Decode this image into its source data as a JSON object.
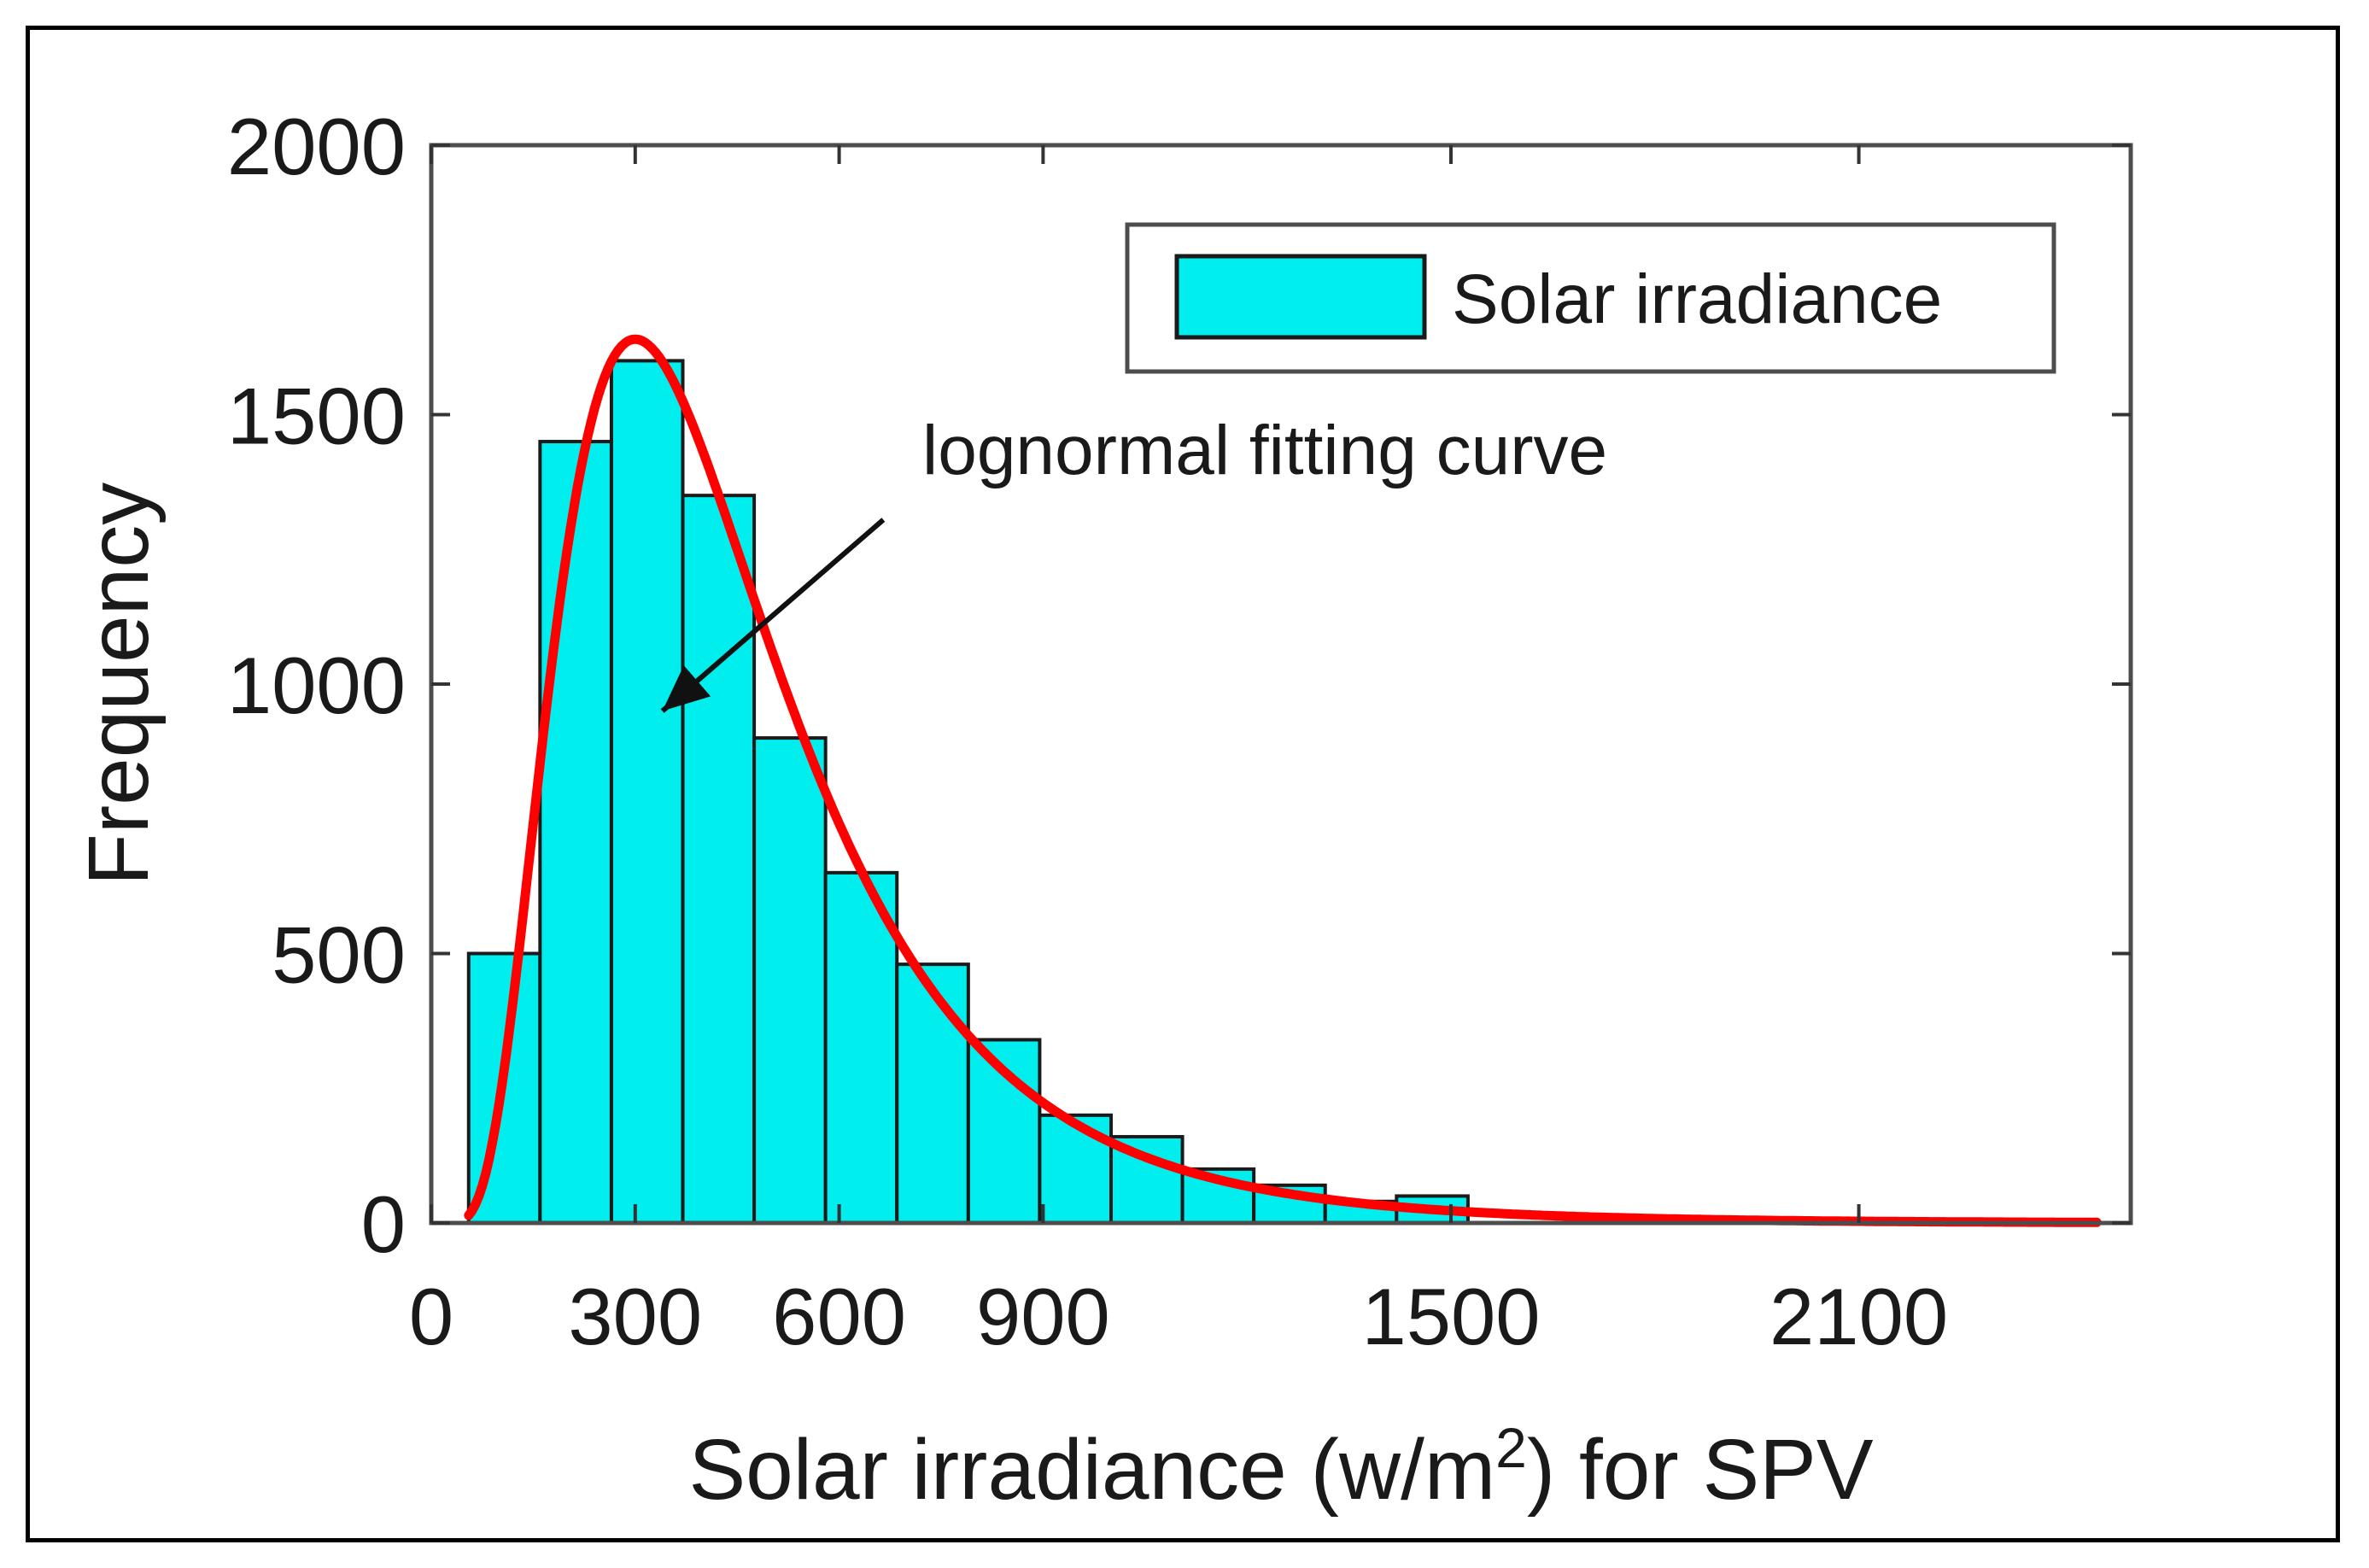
{
  "chart_data": {
    "type": "bar",
    "subtype": "histogram-with-fit",
    "title": "",
    "xlabel": {
      "main": "Solar irradiance (w/m",
      "superscript": "2",
      "suffix": ") for SPV"
    },
    "ylabel": "Frequency",
    "xlim": [
      0,
      2500
    ],
    "ylim": [
      0,
      2000
    ],
    "xticks": [
      0,
      300,
      600,
      900,
      1500,
      2100
    ],
    "xtick_labels": [
      "0",
      "300",
      "600",
      "900",
      "1500",
      "2100"
    ],
    "yticks": [
      0,
      500,
      1000,
      1500,
      2000
    ],
    "ytick_labels": [
      "0",
      "500",
      "1000",
      "1500",
      "2000"
    ],
    "bin_width": 105,
    "bins": [
      {
        "start": 55,
        "value": 500
      },
      {
        "start": 160,
        "value": 1450
      },
      {
        "start": 265,
        "value": 1600
      },
      {
        "start": 370,
        "value": 1350
      },
      {
        "start": 475,
        "value": 900
      },
      {
        "start": 580,
        "value": 650
      },
      {
        "start": 685,
        "value": 480
      },
      {
        "start": 790,
        "value": 340
      },
      {
        "start": 895,
        "value": 200
      },
      {
        "start": 1000,
        "value": 160
      },
      {
        "start": 1105,
        "value": 100
      },
      {
        "start": 1210,
        "value": 70
      },
      {
        "start": 1315,
        "value": 40
      },
      {
        "start": 1420,
        "value": 50
      }
    ],
    "fit_curve": {
      "name": "lognormal fitting curve",
      "mode_x": 300,
      "peak_y": 1640,
      "sigma": 0.55,
      "x_start": 55,
      "x_end": 2450
    },
    "legend": {
      "label": "Solar irradiance",
      "position": "top-right"
    },
    "annotation": {
      "text": "lognormal fitting curve",
      "points_to": {
        "x": 340,
        "y": 950
      },
      "from": {
        "x": 665,
        "y": 1305
      }
    },
    "colors": {
      "bar_fill": "#00eeee",
      "bar_edge": "#1a1a1a",
      "curve": "#ff0000",
      "axis": "#333333"
    }
  }
}
